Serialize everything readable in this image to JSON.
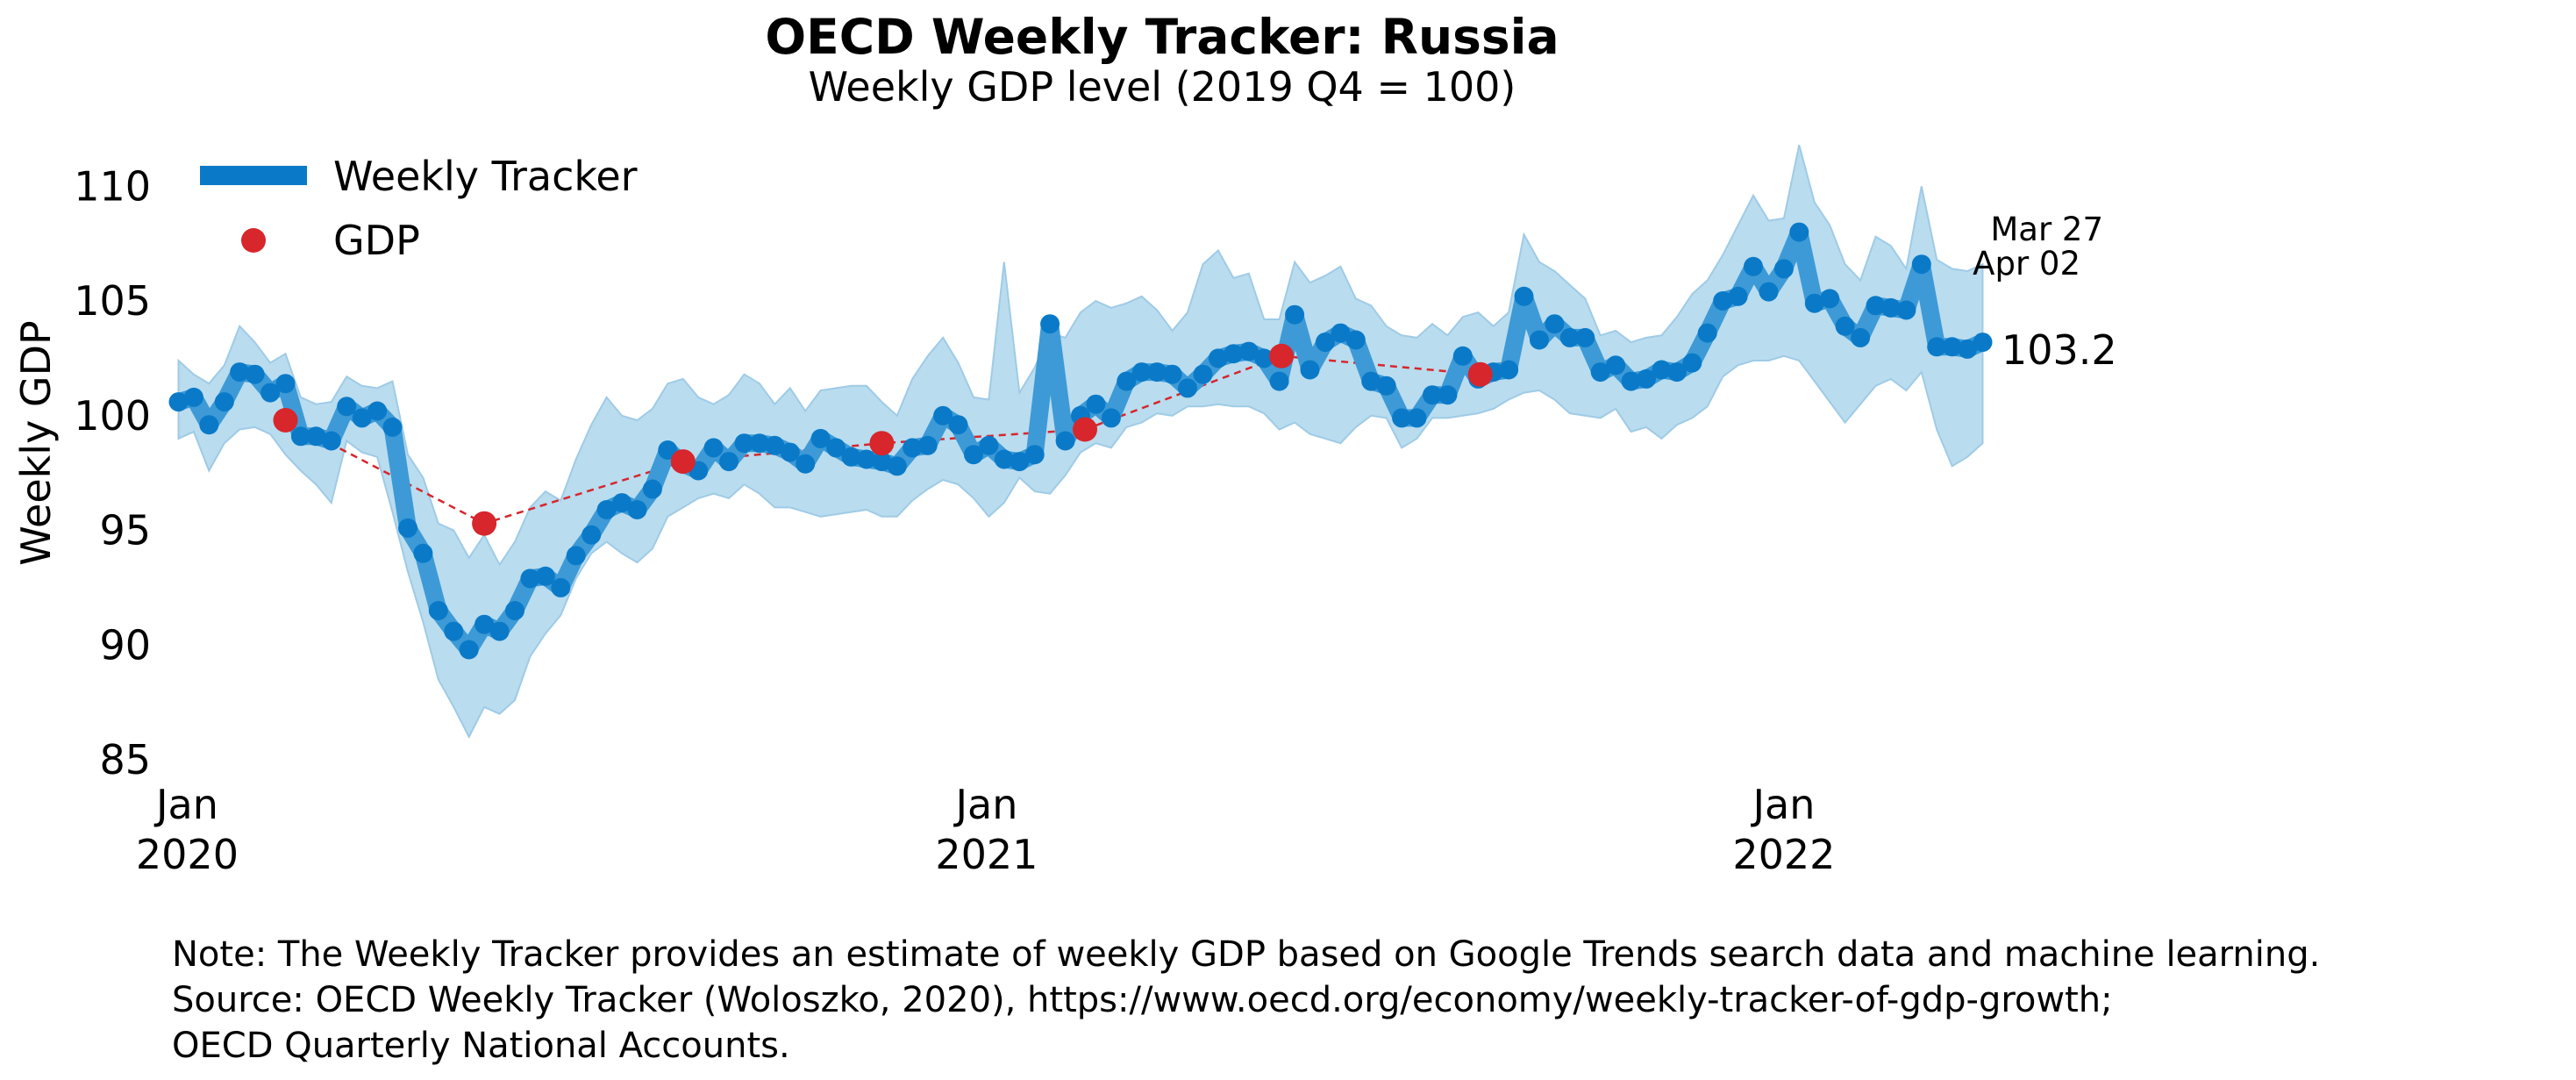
{
  "chart_data": {
    "type": "line",
    "title": "OECD Weekly Tracker: Russia",
    "subtitle": "Weekly GDP level (2019 Q4 = 100)",
    "ylabel": "Weekly GDP",
    "xlabel": "",
    "xlim": [
      "2019-12-25",
      "2022-04-05"
    ],
    "ylim": [
      85,
      112
    ],
    "yticks": [
      85,
      90,
      95,
      100,
      105,
      110
    ],
    "ytick_labels": [
      "85",
      "90",
      "95",
      "100",
      "105",
      "110"
    ],
    "xticks": [
      {
        "date": "2020-01-01",
        "line1": "Jan",
        "line2": "2020"
      },
      {
        "date": "2021-01-01",
        "line1": "Jan",
        "line2": "2021"
      },
      {
        "date": "2022-01-01",
        "line1": "Jan",
        "line2": "2022"
      }
    ],
    "grid": false,
    "legend_position": "top-left",
    "colors": {
      "tracker": "#0a7ac8",
      "band": "#b9dcef",
      "gdp": "#d7262c"
    },
    "series": [
      {
        "name": "Weekly Tracker",
        "kind": "line",
        "x": [
          "2019-12-28",
          "2020-01-04",
          "2020-01-11",
          "2020-01-18",
          "2020-01-25",
          "2020-02-01",
          "2020-02-08",
          "2020-02-15",
          "2020-02-22",
          "2020-02-29",
          "2020-03-07",
          "2020-03-14",
          "2020-03-21",
          "2020-03-28",
          "2020-04-04",
          "2020-04-11",
          "2020-04-18",
          "2020-04-25",
          "2020-05-02",
          "2020-05-09",
          "2020-05-16",
          "2020-05-23",
          "2020-05-30",
          "2020-06-06",
          "2020-06-13",
          "2020-06-20",
          "2020-06-27",
          "2020-07-04",
          "2020-07-11",
          "2020-07-18",
          "2020-07-25",
          "2020-08-01",
          "2020-08-08",
          "2020-08-15",
          "2020-08-22",
          "2020-08-29",
          "2020-09-05",
          "2020-09-12",
          "2020-09-19",
          "2020-09-26",
          "2020-10-03",
          "2020-10-10",
          "2020-10-17",
          "2020-10-24",
          "2020-10-31",
          "2020-11-07",
          "2020-11-14",
          "2020-11-21",
          "2020-11-28",
          "2020-12-05",
          "2020-12-12",
          "2020-12-19",
          "2020-12-26",
          "2021-01-02",
          "2021-01-09",
          "2021-01-16",
          "2021-01-23",
          "2021-01-30",
          "2021-02-06",
          "2021-02-13",
          "2021-02-20",
          "2021-02-27",
          "2021-03-06",
          "2021-03-13",
          "2021-03-20",
          "2021-03-27",
          "2021-04-03",
          "2021-04-10",
          "2021-04-17",
          "2021-04-24",
          "2021-05-01",
          "2021-05-08",
          "2021-05-15",
          "2021-05-22",
          "2021-05-29",
          "2021-06-05",
          "2021-06-12",
          "2021-06-19",
          "2021-06-26",
          "2021-07-03",
          "2021-07-10",
          "2021-07-17",
          "2021-07-24",
          "2021-07-31",
          "2021-08-07",
          "2021-08-14",
          "2021-08-21",
          "2021-08-28",
          "2021-09-04",
          "2021-09-11",
          "2021-09-18",
          "2021-09-25",
          "2021-10-02",
          "2021-10-09",
          "2021-10-16",
          "2021-10-23",
          "2021-10-30",
          "2021-11-06",
          "2021-11-13",
          "2021-11-20",
          "2021-11-27",
          "2021-12-04",
          "2021-12-11",
          "2021-12-18",
          "2021-12-25",
          "2022-01-01",
          "2022-01-08",
          "2022-01-15",
          "2022-01-22",
          "2022-01-29",
          "2022-02-05",
          "2022-02-12",
          "2022-02-19",
          "2022-02-26",
          "2022-03-05",
          "2022-03-12",
          "2022-03-19",
          "2022-03-26",
          "2022-04-02"
        ],
        "values": [
          100.6,
          100.8,
          99.6,
          100.6,
          101.9,
          101.8,
          101.0,
          101.4,
          99.1,
          99.1,
          98.9,
          100.4,
          99.9,
          100.2,
          99.5,
          95.1,
          94.0,
          91.5,
          90.6,
          89.8,
          90.9,
          90.6,
          91.5,
          92.9,
          93.0,
          92.5,
          93.9,
          94.8,
          95.9,
          96.2,
          95.9,
          96.8,
          98.5,
          97.9,
          97.6,
          98.6,
          98.0,
          98.8,
          98.8,
          98.7,
          98.4,
          97.9,
          99.0,
          98.6,
          98.2,
          98.1,
          98.0,
          97.8,
          98.6,
          98.7,
          100.0,
          99.6,
          98.3,
          98.7,
          98.1,
          98.0,
          98.3,
          104.0,
          98.9,
          100.0,
          100.5,
          99.9,
          101.5,
          101.9,
          101.9,
          101.8,
          101.2,
          101.8,
          102.5,
          102.7,
          102.8,
          102.5,
          101.5,
          104.4,
          102.0,
          103.2,
          103.6,
          103.3,
          101.5,
          101.3,
          99.9,
          99.9,
          100.9,
          100.9,
          102.6,
          101.6,
          101.9,
          102.0,
          105.2,
          103.3,
          104.0,
          103.4,
          103.4,
          101.9,
          102.2,
          101.5,
          101.6,
          102.0,
          101.9,
          102.3,
          103.6,
          105.0,
          105.2,
          106.5,
          105.4,
          106.4,
          108.0,
          104.9,
          105.1,
          103.9,
          103.4,
          104.8,
          104.7,
          104.6,
          106.6,
          103.0,
          103.0,
          102.9,
          103.2
        ],
        "lower": [
          99.0,
          99.3,
          97.6,
          98.8,
          99.4,
          99.5,
          99.2,
          98.3,
          97.6,
          97.0,
          96.2,
          98.9,
          98.4,
          98.2,
          95.8,
          93.2,
          91.0,
          88.5,
          87.3,
          86.0,
          87.3,
          87.0,
          87.6,
          89.5,
          90.5,
          91.3,
          92.9,
          94.0,
          94.5,
          94.0,
          93.6,
          94.2,
          95.6,
          96.0,
          96.4,
          96.6,
          96.4,
          97.0,
          96.6,
          96.0,
          96.0,
          95.8,
          95.6,
          95.7,
          95.8,
          95.9,
          95.6,
          95.6,
          96.3,
          96.8,
          97.2,
          97.0,
          96.4,
          95.6,
          96.2,
          97.3,
          96.7,
          96.6,
          97.4,
          98.4,
          98.8,
          98.6,
          99.5,
          99.7,
          100.1,
          100.0,
          100.4,
          100.4,
          100.5,
          100.4,
          100.4,
          100.1,
          99.4,
          99.7,
          99.2,
          99.0,
          98.8,
          99.5,
          100.0,
          99.9,
          98.6,
          99.0,
          99.9,
          99.9,
          100.0,
          100.1,
          100.3,
          100.7,
          101.0,
          101.1,
          100.7,
          100.1,
          100.0,
          99.9,
          100.3,
          99.3,
          99.5,
          99.0,
          99.6,
          99.9,
          100.4,
          101.7,
          102.2,
          102.4,
          102.4,
          102.6,
          102.4,
          101.5,
          100.6,
          99.7,
          100.5,
          101.3,
          101.6,
          101.1,
          101.9,
          99.4,
          97.8,
          98.2,
          98.8
        ],
        "upper": [
          102.4,
          101.8,
          101.4,
          102.2,
          103.9,
          103.2,
          102.3,
          102.7,
          100.8,
          100.5,
          100.6,
          101.7,
          101.3,
          101.2,
          101.5,
          98.3,
          97.3,
          95.3,
          95.0,
          93.8,
          94.8,
          93.5,
          94.5,
          96.0,
          96.7,
          96.3,
          98.1,
          99.6,
          100.8,
          100.0,
          99.8,
          100.3,
          101.4,
          101.6,
          100.8,
          100.5,
          100.9,
          101.8,
          101.4,
          100.5,
          101.2,
          100.2,
          101.1,
          101.2,
          101.3,
          101.3,
          100.6,
          100.0,
          101.6,
          102.6,
          103.4,
          102.3,
          100.8,
          100.7,
          106.7,
          101.0,
          102.1,
          103.6,
          103.4,
          104.5,
          105.0,
          104.7,
          104.9,
          105.2,
          104.6,
          103.7,
          104.5,
          106.6,
          107.2,
          106.0,
          106.2,
          104.2,
          104.2,
          106.7,
          105.8,
          106.1,
          106.5,
          105.1,
          104.8,
          103.9,
          103.5,
          103.4,
          104.0,
          103.5,
          104.3,
          104.5,
          103.9,
          104.5,
          107.9,
          106.7,
          106.3,
          105.7,
          105.1,
          103.5,
          103.7,
          103.2,
          103.4,
          103.5,
          104.3,
          105.3,
          105.9,
          107.0,
          108.3,
          109.6,
          108.5,
          108.6,
          111.8,
          109.3,
          108.3,
          106.6,
          105.9,
          107.8,
          107.4,
          106.4,
          110.0,
          106.8,
          106.4,
          106.3,
          106.6
        ],
        "band_label": ""
      },
      {
        "name": "GDP",
        "kind": "marker",
        "x": [
          "2020-02-15",
          "2020-05-16",
          "2020-08-15",
          "2020-11-14",
          "2021-02-15",
          "2021-05-16",
          "2021-08-15"
        ],
        "values": [
          99.8,
          95.3,
          98.0,
          98.8,
          99.4,
          102.6,
          101.8
        ]
      }
    ],
    "annotations": {
      "last_value": "103.2",
      "date_line1": "Mar 27",
      "date_line2": "Apr 02"
    }
  },
  "notes": {
    "line1": "Note: The Weekly Tracker provides an estimate of weekly GDP based on Google Trends search data and machine learning.",
    "line2": "Source: OECD Weekly Tracker (Woloszko, 2020), https://www.oecd.org/economy/weekly-tracker-of-gdp-growth;",
    "line3": "OECD Quarterly National Accounts."
  }
}
